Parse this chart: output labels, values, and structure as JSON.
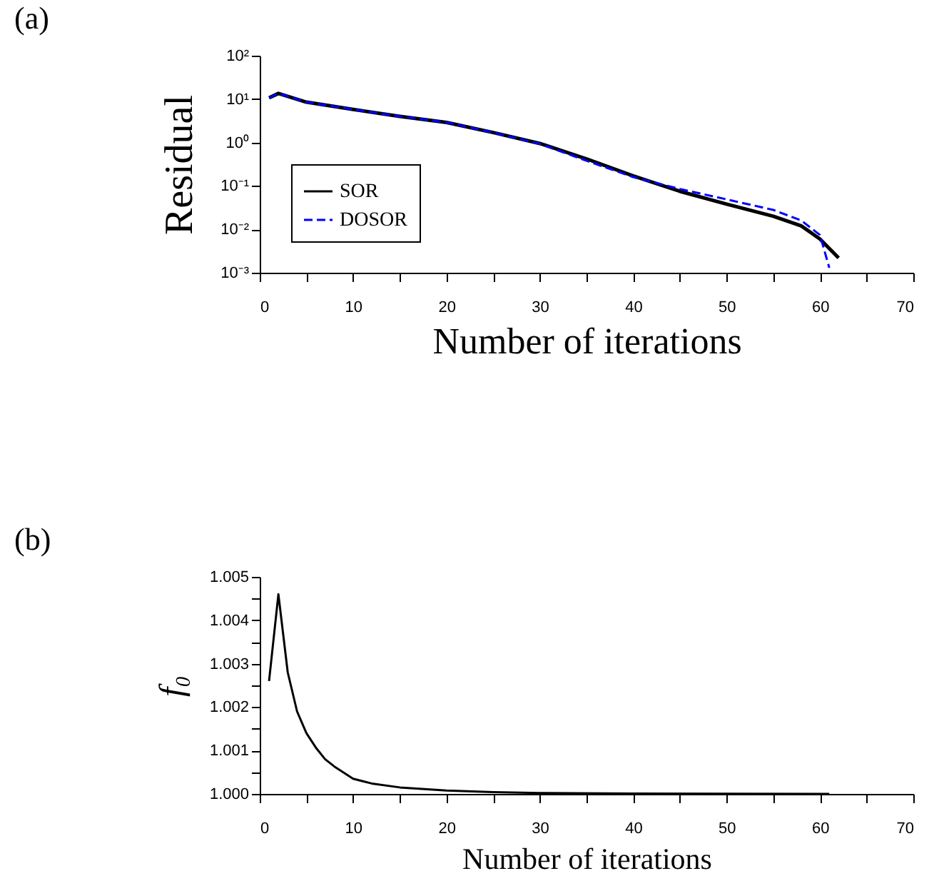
{
  "chart_data": [
    {
      "type": "line",
      "title": "(a)",
      "xlabel": "Number of iterations",
      "ylabel": "Residual",
      "log": "y",
      "legend": "bottom left",
      "grid": false,
      "xlim": [
        0,
        70
      ],
      "xticks": [
        0,
        {
          "value": 5,
          "label": null
        },
        10,
        {
          "value": 15,
          "label": null
        },
        20,
        {
          "value": 25,
          "label": null
        },
        30,
        {
          "value": 35,
          "label": null
        },
        40,
        {
          "value": 45,
          "label": null
        },
        50,
        {
          "value": 55,
          "label": null
        },
        60,
        {
          "value": 65,
          "label": null
        },
        70
      ],
      "ylim": [
        0.001,
        100
      ],
      "yticks": [
        {
          "value": 0.001,
          "label": "10⁻³"
        },
        {
          "value": 0.01,
          "label": "10⁻²"
        },
        {
          "value": 0.1,
          "label": "10⁻¹"
        },
        {
          "value": 1,
          "label": "10⁰"
        },
        {
          "value": 10,
          "label": "10¹"
        },
        {
          "value": 100,
          "label": "10²"
        }
      ],
      "series": [
        {
          "name": "SOR",
          "color": "#000000",
          "line_style": "solid",
          "x": [
            1,
            2,
            5,
            10,
            15,
            20,
            25,
            30,
            35,
            40,
            45,
            50,
            55,
            58,
            60,
            62
          ],
          "values": [
            10.7,
            13.5,
            8.5,
            5.8,
            4.0,
            2.9,
            1.7,
            0.95,
            0.42,
            0.17,
            0.075,
            0.038,
            0.02,
            0.012,
            0.006,
            0.0022
          ]
        },
        {
          "name": "DOSOR",
          "color": "#0000ff",
          "line_style": "dashed",
          "x": [
            1,
            2,
            5,
            10,
            15,
            20,
            25,
            30,
            35,
            40,
            45,
            50,
            55,
            58,
            60,
            61
          ],
          "values": [
            10.7,
            13.5,
            8.5,
            5.8,
            4.0,
            2.9,
            1.7,
            0.93,
            0.38,
            0.16,
            0.085,
            0.049,
            0.028,
            0.016,
            0.0074,
            0.0013
          ]
        }
      ]
    },
    {
      "type": "line",
      "title": "(b)",
      "xlabel": "Number of iterations",
      "ylabel": "f₀",
      "grid": false,
      "xlim": [
        0,
        70
      ],
      "xticks": [
        0,
        {
          "value": 5,
          "label": null
        },
        10,
        {
          "value": 15,
          "label": null
        },
        20,
        {
          "value": 25,
          "label": null
        },
        30,
        {
          "value": 35,
          "label": null
        },
        40,
        {
          "value": 45,
          "label": null
        },
        50,
        {
          "value": 55,
          "label": null
        },
        60,
        {
          "value": 65,
          "label": null
        },
        70
      ],
      "ylim": [
        1.0,
        1.005
      ],
      "yticks": [
        {
          "value": 1.0,
          "label": "1.000"
        },
        {
          "value": 1.0005,
          "label": null
        },
        {
          "value": 1.001,
          "label": "1.001"
        },
        {
          "value": 1.0015,
          "label": null
        },
        {
          "value": 1.002,
          "label": "1.002"
        },
        {
          "value": 1.0025,
          "label": null
        },
        {
          "value": 1.003,
          "label": "1.003"
        },
        {
          "value": 1.0035,
          "label": null
        },
        {
          "value": 1.004,
          "label": "1.004"
        },
        {
          "value": 1.0045,
          "label": null
        },
        {
          "value": 1.005,
          "label": "1.005"
        }
      ],
      "series": [
        {
          "color": "#000000",
          "line_style": "solid",
          "x": [
            1,
            2,
            3,
            4,
            5,
            6,
            7,
            8,
            10,
            12,
            15,
            20,
            25,
            30,
            40,
            61
          ],
          "values": [
            1.0026,
            1.0046,
            1.0028,
            1.0019,
            1.0014,
            1.00107,
            1.0008,
            1.00063,
            1.00035,
            1.00024,
            1.00015,
            1.00008,
            1.00004,
            1.00002,
            1.00001,
            1.0
          ]
        }
      ]
    }
  ]
}
